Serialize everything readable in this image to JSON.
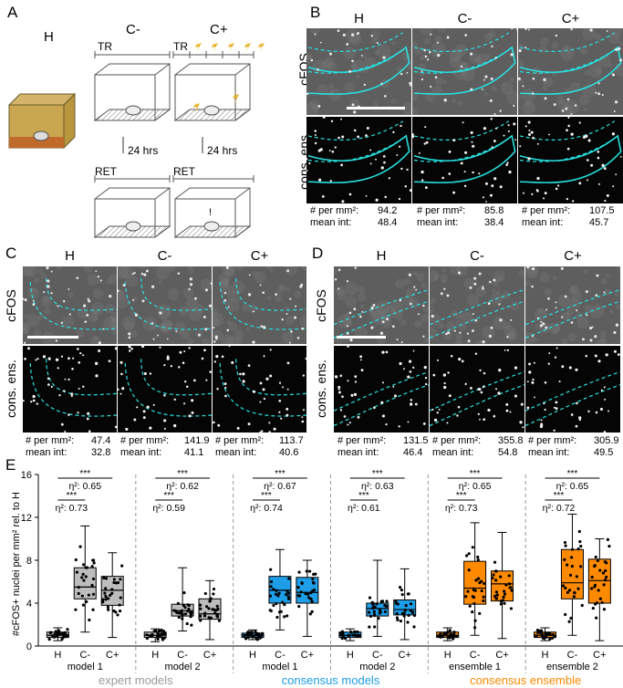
{
  "panels": {
    "A": "A",
    "B": "B",
    "C": "C",
    "D": "D",
    "E": "E"
  },
  "panelA": {
    "h_label": "H",
    "cminus_label": "C-",
    "cplus_label": "C+",
    "tr_label": "TR",
    "ret_label": "RET",
    "delay_label": "24 hrs"
  },
  "conditions": [
    "H",
    "C-",
    "C+"
  ],
  "rows": {
    "cfos": "cFOS",
    "cons": "cons. ens."
  },
  "stat_labels": {
    "density": "# per mm²:",
    "intensity": "mean int:"
  },
  "panelB": {
    "stats": [
      {
        "density": "94.2",
        "intensity": "48.4"
      },
      {
        "density": "85.8",
        "intensity": "38.4"
      },
      {
        "density": "107.5",
        "intensity": "45.7"
      }
    ]
  },
  "panelC": {
    "stats": [
      {
        "density": "47.4",
        "intensity": "32.8"
      },
      {
        "density": "141.9",
        "intensity": "41.1"
      },
      {
        "density": "113.7",
        "intensity": "40.6"
      }
    ]
  },
  "panelD": {
    "stats": [
      {
        "density": "131.5",
        "intensity": "46.4"
      },
      {
        "density": "355.8",
        "intensity": "54.8"
      },
      {
        "density": "305.9",
        "intensity": "49.5"
      }
    ]
  },
  "chart_data": {
    "type": "box",
    "ylabel": "#cFOS+ nuclei per mm² rel. to H",
    "ylim": [
      0,
      16
    ],
    "yticks": [
      0,
      4,
      8,
      12,
      16
    ],
    "categories": [
      "H",
      "C-",
      "C+"
    ],
    "groups": [
      {
        "name": "model 1",
        "family": "expert models",
        "color": "#bdbdbd",
        "sig": "***",
        "eta_top": "η²: 0.65",
        "eta_bottom": "η²: 0.73",
        "boxes": [
          {
            "min": 0.5,
            "q1": 0.8,
            "med": 1.0,
            "q3": 1.3,
            "max": 1.7
          },
          {
            "min": 1.3,
            "q1": 4.4,
            "med": 5.5,
            "q3": 7.3,
            "max": 11.2
          },
          {
            "min": 0.8,
            "q1": 3.8,
            "med": 5.2,
            "q3": 6.5,
            "max": 8.7
          }
        ]
      },
      {
        "name": "model 2",
        "family": "expert models",
        "color": "#bdbdbd",
        "sig": "***",
        "eta_top": "η²: 0.62",
        "eta_bottom": "η²: 0.59",
        "boxes": [
          {
            "min": 0.4,
            "q1": 0.8,
            "med": 1.0,
            "q3": 1.3,
            "max": 1.6
          },
          {
            "min": 1.4,
            "q1": 2.8,
            "med": 3.3,
            "q3": 3.9,
            "max": 7.3
          },
          {
            "min": 0.6,
            "q1": 2.5,
            "med": 3.0,
            "q3": 4.4,
            "max": 6.1
          }
        ]
      },
      {
        "name": "model 1",
        "family": "consensus models",
        "color": "#1f9ee8",
        "sig": "***",
        "eta_top": "η²: 0.67",
        "eta_bottom": "η²: 0.74",
        "boxes": [
          {
            "min": 0.6,
            "q1": 0.8,
            "med": 1.0,
            "q3": 1.2,
            "max": 1.5
          },
          {
            "min": 1.5,
            "q1": 4.0,
            "med": 5.2,
            "q3": 6.5,
            "max": 9.0
          },
          {
            "min": 0.9,
            "q1": 4.0,
            "med": 5.0,
            "q3": 6.4,
            "max": 8.0
          }
        ]
      },
      {
        "name": "model 2",
        "family": "consensus models",
        "color": "#1f9ee8",
        "sig": "***",
        "eta_top": "η²: 0.63",
        "eta_bottom": "η²: 0.61",
        "boxes": [
          {
            "min": 0.5,
            "q1": 0.8,
            "med": 1.0,
            "q3": 1.3,
            "max": 1.6
          },
          {
            "min": 0.9,
            "q1": 2.8,
            "med": 3.5,
            "q3": 4.0,
            "max": 8.0
          },
          {
            "min": 0.6,
            "q1": 2.9,
            "med": 3.4,
            "q3": 4.3,
            "max": 7.2
          }
        ]
      },
      {
        "name": "ensemble 1",
        "family": "consensus ensemble",
        "color": "#ff8a00",
        "sig": "***",
        "eta_top": "η²: 0.65",
        "eta_bottom": "η²: 0.73",
        "boxes": [
          {
            "min": 0.5,
            "q1": 0.8,
            "med": 1.0,
            "q3": 1.3,
            "max": 1.7
          },
          {
            "min": 1.0,
            "q1": 3.9,
            "med": 5.4,
            "q3": 7.9,
            "max": 11.5
          },
          {
            "min": 0.7,
            "q1": 4.2,
            "med": 5.8,
            "q3": 7.0,
            "max": 10.6
          }
        ]
      },
      {
        "name": "ensemble 2",
        "family": "consensus ensemble",
        "color": "#ff8a00",
        "sig": "***",
        "eta_top": "η²: 0.65",
        "eta_bottom": "η²: 0.72",
        "boxes": [
          {
            "min": 0.5,
            "q1": 0.8,
            "med": 1.0,
            "q3": 1.3,
            "max": 1.7
          },
          {
            "min": 1.0,
            "q1": 4.4,
            "med": 5.9,
            "q3": 9.0,
            "max": 12.3
          },
          {
            "min": 0.5,
            "q1": 4.0,
            "med": 6.1,
            "q3": 8.1,
            "max": 10.0
          }
        ]
      }
    ],
    "families": [
      {
        "name": "expert models",
        "color": "#9a9a9a"
      },
      {
        "name": "consensus models",
        "color": "#1f9ee8"
      },
      {
        "name": "consensus ensemble",
        "color": "#ff8a00"
      }
    ]
  }
}
